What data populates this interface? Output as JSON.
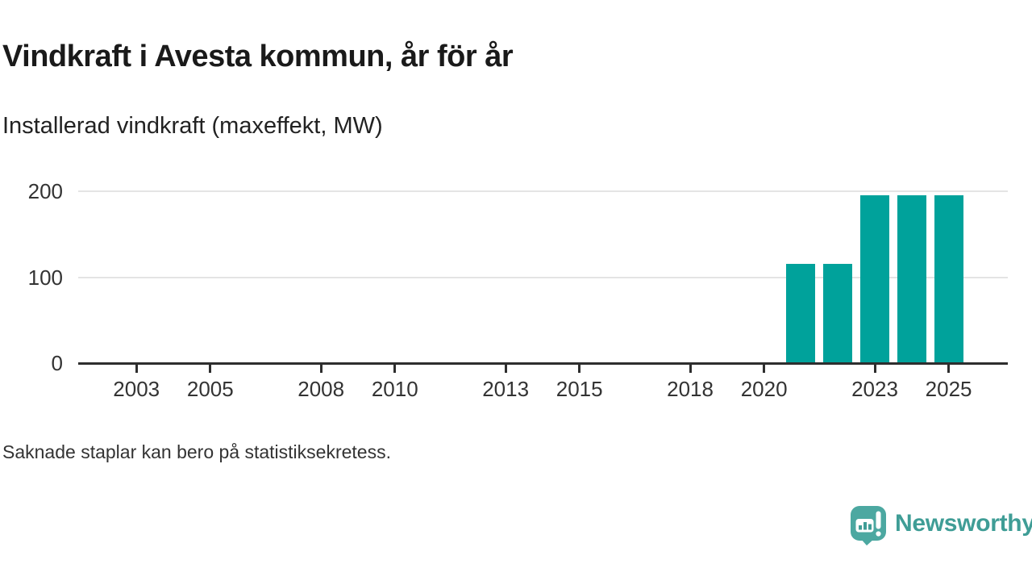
{
  "title": "Vindkraft i Avesta kommun, år för år",
  "subtitle": "Installerad vindkraft (maxeffekt, MW)",
  "footnote": "Saknade staplar kan bero på statistiksekretess.",
  "brand": {
    "name": "Newsworthy",
    "logo_icon": "speech-bubble-mini-bar-chart-with-exclamation"
  },
  "colors": {
    "background": "#FFFFFF",
    "bar": "#00A29B",
    "axis_line": "#2E2E2E",
    "grid_line": "#E4E4E4",
    "tick_text": "#333333",
    "title_text": "#1A1A1A",
    "subtitle_text": "#222222",
    "footnote_text": "#333333",
    "brand_teal": "#3F9D96",
    "logo_bubble": "#4CA8A1"
  },
  "chart_data": {
    "type": "bar",
    "title": "Vindkraft i Avesta kommun, år för år",
    "subtitle": "Installerad vindkraft (maxeffekt, MW)",
    "unit": "MW",
    "x_ticks": [
      2003,
      2005,
      2008,
      2010,
      2013,
      2015,
      2018,
      2020,
      2023,
      2025
    ],
    "y_ticks": [
      0,
      100,
      200
    ],
    "ylim": [
      0,
      200
    ],
    "grid": true,
    "legend": "none",
    "bars": [
      {
        "year": 2021,
        "value": 116
      },
      {
        "year": 2022,
        "value": 116
      },
      {
        "year": 2023,
        "value": 196
      },
      {
        "year": 2024,
        "value": 196
      },
      {
        "year": 2025,
        "value": 196
      }
    ],
    "missing_years_note": "Saknade staplar kan bero på statistiksekretess."
  }
}
